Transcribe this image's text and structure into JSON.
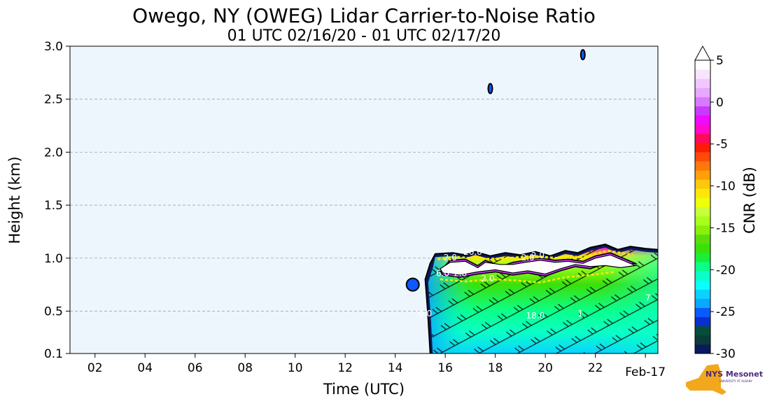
{
  "chart_data": {
    "type": "heatmap",
    "title": "Owego, NY (OWEG) Lidar Carrier-to-Noise Ratio",
    "subtitle": "01 UTC 02/16/20 - 01 UTC 02/17/20",
    "xlabel": "Time (UTC)",
    "ylabel": "Height (km)",
    "xlim": [
      1,
      24.5
    ],
    "ylim": [
      0.1,
      3.0
    ],
    "x_ticks": [
      {
        "value": 2,
        "label": "02"
      },
      {
        "value": 4,
        "label": "04"
      },
      {
        "value": 6,
        "label": "06"
      },
      {
        "value": 8,
        "label": "08"
      },
      {
        "value": 10,
        "label": "10"
      },
      {
        "value": 12,
        "label": "12"
      },
      {
        "value": 14,
        "label": "14"
      },
      {
        "value": 16,
        "label": "16"
      },
      {
        "value": 18,
        "label": "18"
      },
      {
        "value": 20,
        "label": "20"
      },
      {
        "value": 22,
        "label": "22"
      },
      {
        "value": 24,
        "label": "Feb-17"
      }
    ],
    "y_ticks": [
      {
        "value": 0.1,
        "label": "0.1"
      },
      {
        "value": 0.5,
        "label": "0.5"
      },
      {
        "value": 1.0,
        "label": "1.0"
      },
      {
        "value": 1.5,
        "label": "1.5"
      },
      {
        "value": 2.0,
        "label": "2.0"
      },
      {
        "value": 2.5,
        "label": "2.5"
      },
      {
        "value": 3.0,
        "label": "3.0"
      }
    ],
    "grid": "horizontal dashed",
    "background_color": "#eef6fd",
    "colorbar": {
      "label": "CNR (dB)",
      "min": -30,
      "max": 5,
      "extend": "max",
      "ticks": [
        {
          "value": 5,
          "label": "5"
        },
        {
          "value": 0,
          "label": "0"
        },
        {
          "value": -5,
          "label": "-5"
        },
        {
          "value": -10,
          "label": "-10"
        },
        {
          "value": -15,
          "label": "-15"
        },
        {
          "value": -20,
          "label": "-20"
        },
        {
          "value": -25,
          "label": "-25"
        },
        {
          "value": -30,
          "label": "-30"
        }
      ],
      "colors": [
        "#0a1a5c",
        "#0a3d3a",
        "#064d3c",
        "#0a2fd0",
        "#0a5aff",
        "#0aa8ff",
        "#0ad2ff",
        "#0affff",
        "#0affc8",
        "#0aff8a",
        "#1aee3a",
        "#3ae00a",
        "#5ade0a",
        "#88f00a",
        "#a8ff1a",
        "#c8ff3a",
        "#eeff0a",
        "#ffe60a",
        "#ffc80a",
        "#ffa00a",
        "#ff780a",
        "#ff4a0a",
        "#ff1a0a",
        "#ff0a5a",
        "#ff0ac8",
        "#f00aff",
        "#c83aff",
        "#d87aff",
        "#e8a8ff",
        "#f0c8ff",
        "#f8e4ff",
        "#ffffff"
      ]
    },
    "contour_labels": [
      {
        "x": 16.2,
        "y": 0.98,
        "text": "2.0"
      },
      {
        "x": 17.1,
        "y": 1.03,
        "text": "26.0"
      },
      {
        "x": 15.9,
        "y": 0.83,
        "text": "6.0"
      },
      {
        "x": 16.6,
        "y": 0.83,
        "text": "2.0"
      },
      {
        "x": 17.7,
        "y": 0.78,
        "text": "2.0"
      },
      {
        "x": 19.3,
        "y": 0.98,
        "text": "2.0"
      },
      {
        "x": 19.7,
        "y": 1.0,
        "text": "2.0"
      },
      {
        "x": 19.6,
        "y": 0.43,
        "text": "18.0"
      },
      {
        "x": 15.2,
        "y": 0.45,
        "text": "0.0"
      },
      {
        "x": 21.4,
        "y": 0.45,
        "text": "1"
      },
      {
        "x": 22.3,
        "y": 0.95,
        "text": "0"
      },
      {
        "x": 24.1,
        "y": 0.6,
        "text": "7"
      }
    ],
    "features": [
      {
        "name": "boundary-layer aerosol/cloud region",
        "x_start": 15.4,
        "x_end": 24.5,
        "top_km": 1.05
      },
      {
        "name": "cloud-base layer",
        "x_start": 15.7,
        "x_end": 23.7,
        "top_km": 1.0,
        "base_km": 0.85
      },
      {
        "name": "isolated echo",
        "x": 17.8,
        "y": 2.6
      },
      {
        "name": "isolated echo",
        "x": 21.5,
        "y": 2.92
      },
      {
        "name": "isolated echo",
        "x": 14.7,
        "y": 0.75
      }
    ]
  },
  "logo": {
    "text_primary": "NYS Mesonet",
    "text_secondary": "UNIVERSITY AT ALBANY"
  }
}
